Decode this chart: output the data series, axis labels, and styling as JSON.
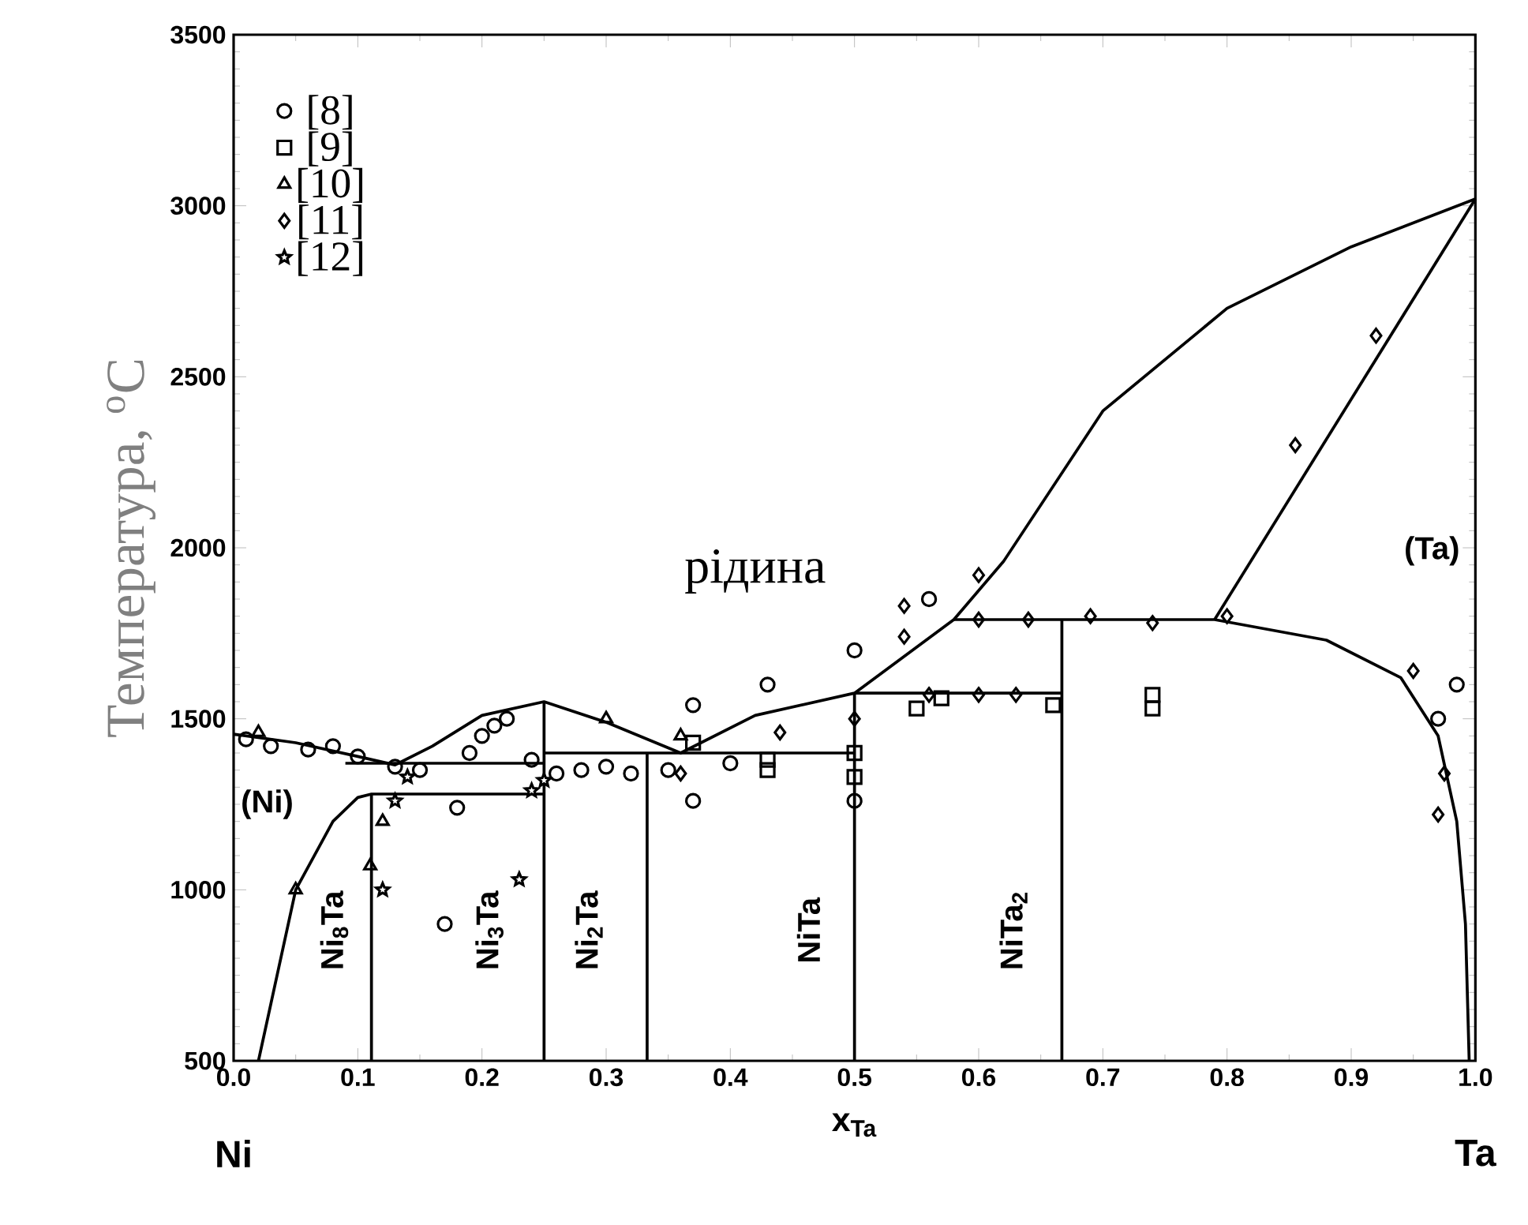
{
  "chart_data": {
    "type": "scatter",
    "xlabel": "x$_{Ta}$",
    "ylabel": "Температура, $^{o}$C",
    "xlim": [
      0,
      1
    ],
    "ylim": [
      500,
      3500
    ],
    "xticks": [
      {
        "value": 0,
        "label": "0.0"
      },
      {
        "value": 0.1,
        "label": "0.1"
      },
      {
        "value": 0.2,
        "label": "0.2"
      },
      {
        "value": 0.3,
        "label": "0.3"
      },
      {
        "value": 0.4,
        "label": "0.4"
      },
      {
        "value": 0.5,
        "label": "0.5"
      },
      {
        "value": 0.6,
        "label": "0.6"
      },
      {
        "value": 0.7,
        "label": "0.7"
      },
      {
        "value": 0.8,
        "label": "0.8"
      },
      {
        "value": 0.9,
        "label": "0.9"
      },
      {
        "value": 1,
        "label": "1.0"
      }
    ],
    "yticks": [
      500,
      1000,
      1500,
      2000,
      2500,
      3000,
      3500
    ],
    "grid": false,
    "legend": "top left",
    "series": [
      {
        "name": "[8]",
        "marker": "circle",
        "color": "#000000",
        "x": [
          0.01,
          0.03,
          0.06,
          0.08,
          0.1,
          0.13,
          0.15,
          0.17,
          0.18,
          0.19,
          0.2,
          0.21,
          0.22,
          0.24,
          0.26,
          0.28,
          0.3,
          0.32,
          0.35,
          0.37,
          0.37,
          0.4,
          0.43,
          0.5,
          0.56,
          0.5,
          0.985,
          0.97
        ],
        "values": [
          1440,
          1420,
          1410,
          1420,
          1390,
          1360,
          1350,
          900,
          1240,
          1400,
          1450,
          1480,
          1500,
          1380,
          1340,
          1350,
          1360,
          1340,
          1350,
          1260,
          1540,
          1370,
          1600,
          1700,
          1850,
          1260,
          1600,
          1500
        ]
      },
      {
        "name": "[9]",
        "marker": "square",
        "color": "#000000",
        "x": [
          0.37,
          0.43,
          0.43,
          0.5,
          0.5,
          0.55,
          0.57,
          0.66,
          0.74,
          0.74
        ],
        "values": [
          1430,
          1380,
          1350,
          1400,
          1330,
          1530,
          1560,
          1540,
          1570,
          1530
        ]
      },
      {
        "name": "[10]",
        "marker": "triangle",
        "color": "#000000",
        "x": [
          0.02,
          0.05,
          0.11,
          0.12,
          0.3,
          0.36
        ],
        "values": [
          1460,
          1000,
          1070,
          1200,
          1500,
          1450
        ]
      },
      {
        "name": "[11]",
        "marker": "diamond",
        "color": "#000000",
        "x": [
          0.36,
          0.44,
          0.5,
          0.54,
          0.54,
          0.56,
          0.6,
          0.6,
          0.6,
          0.63,
          0.64,
          0.69,
          0.74,
          0.8,
          0.855,
          0.92,
          0.95,
          0.97,
          0.975
        ],
        "values": [
          1340,
          1460,
          1500,
          1740,
          1830,
          1570,
          1790,
          1920,
          1570,
          1570,
          1790,
          1800,
          1780,
          1800,
          2300,
          2620,
          1640,
          1220,
          1340
        ]
      },
      {
        "name": "[12]",
        "marker": "star",
        "color": "#000000",
        "x": [
          0.12,
          0.13,
          0.14,
          0.23,
          0.24,
          0.25
        ],
        "values": [
          1000,
          1260,
          1330,
          1030,
          1290,
          1320
        ]
      },
      {
        "type": "line",
        "color": "#000000",
        "x": [
          0,
          0.05,
          0.1,
          0.13,
          0.16,
          0.2,
          0.25,
          0.3,
          0.36,
          0.42,
          0.5,
          0.58,
          0.62,
          0.7,
          0.8,
          0.9,
          1
        ],
        "values": [
          1455,
          1430,
          1390,
          1365,
          1420,
          1510,
          1550,
          1490,
          1400,
          1510,
          1575,
          1790,
          1960,
          2400,
          2700,
          2880,
          3020
        ]
      },
      {
        "type": "line",
        "color": "#000000",
        "x": [
          0.79,
          1
        ],
        "values": [
          1790,
          3020
        ]
      },
      {
        "type": "line",
        "color": "#000000",
        "x": [
          0.58,
          0.79,
          0.88,
          0.94,
          0.97,
          0.985,
          0.992,
          0.995
        ],
        "values": [
          1790,
          1790,
          1730,
          1620,
          1450,
          1200,
          900,
          500
        ]
      },
      {
        "type": "line",
        "color": "#000000",
        "x": [
          0.02,
          0.05,
          0.08,
          0.1,
          0.111,
          0.25
        ],
        "values": [
          500,
          1000,
          1200,
          1270,
          1280,
          1280
        ]
      },
      {
        "type": "line",
        "color": "#000000",
        "x": [
          0.09,
          0.25
        ],
        "values": [
          1370,
          1370
        ]
      },
      {
        "type": "line",
        "color": "#000000",
        "x": [
          0.111,
          0.111
        ],
        "values": [
          500,
          1280
        ]
      },
      {
        "type": "line",
        "color": "#000000",
        "x": [
          0.25,
          0.25
        ],
        "values": [
          500,
          1550
        ]
      },
      {
        "type": "line",
        "color": "#000000",
        "x": [
          0.25,
          0.5
        ],
        "values": [
          1400,
          1400
        ]
      },
      {
        "type": "line",
        "color": "#000000",
        "x": [
          0.333,
          0.333
        ],
        "values": [
          500,
          1400
        ]
      },
      {
        "type": "line",
        "color": "#000000",
        "x": [
          0.5,
          0.5
        ],
        "values": [
          500,
          1575
        ]
      },
      {
        "type": "line",
        "color": "#000000",
        "x": [
          0.5,
          0.667
        ],
        "values": [
          1575,
          1575
        ]
      },
      {
        "type": "line",
        "color": "#000000",
        "x": [
          0.667,
          0.667
        ],
        "values": [
          500,
          1790
        ]
      }
    ],
    "annotations": [
      "Ni$_{8}$Ta",
      "Ni$_{3}$Ta",
      "Ni$_{2}$Ta",
      "NiTa",
      "NiTa$_{2}$",
      "(Ni)",
      "(Ta)",
      "рідина",
      "Ni",
      "Ta"
    ]
  }
}
